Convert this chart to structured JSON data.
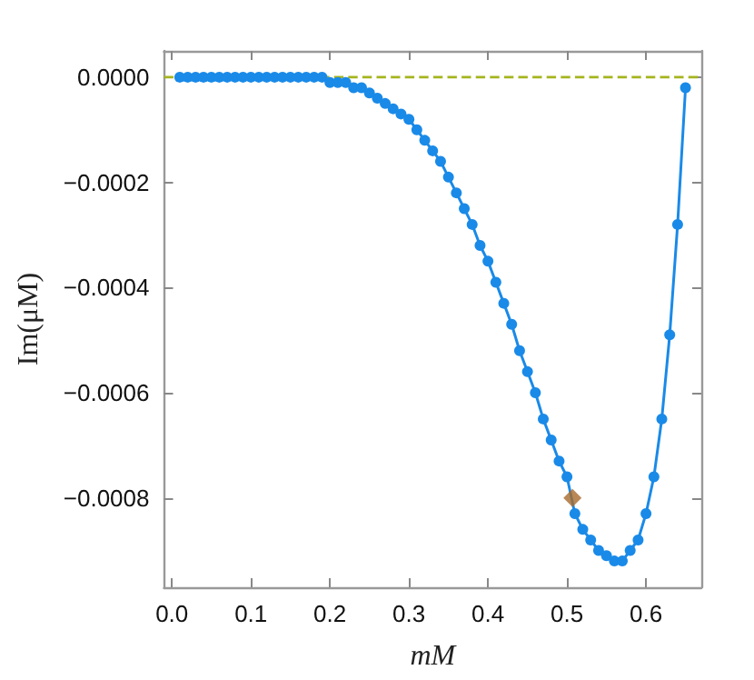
{
  "chart_data": {
    "type": "line",
    "xlabel": "mM",
    "ylabel": "Im(μM)",
    "xlim": [
      -0.01,
      0.67
    ],
    "ylim": [
      -0.00097,
      5e-05
    ],
    "xticks": [
      {
        "value": 0,
        "label": "0.0"
      },
      {
        "value": 0.1,
        "label": "0.1"
      },
      {
        "value": 0.2,
        "label": "0.2"
      },
      {
        "value": 0.3,
        "label": "0.3"
      },
      {
        "value": 0.4,
        "label": "0.4"
      },
      {
        "value": 0.5,
        "label": "0.5"
      },
      {
        "value": 0.6,
        "label": "0.6"
      }
    ],
    "yticks": [
      {
        "value": 0,
        "label": "0.0000"
      },
      {
        "value": -0.0002,
        "label": "−0.0002"
      },
      {
        "value": -0.0004,
        "label": "−0.0004"
      },
      {
        "value": -0.0006,
        "label": "−0.0006"
      },
      {
        "value": -0.0008,
        "label": "−0.0008"
      }
    ],
    "grid": false,
    "marker": "circle",
    "line_style": "solid",
    "series": [
      {
        "color": "#1a8ae8",
        "x": [
          0.01,
          0.02,
          0.03,
          0.04,
          0.05,
          0.06,
          0.07,
          0.08,
          0.09,
          0.1,
          0.11,
          0.12,
          0.13,
          0.14,
          0.15,
          0.16,
          0.17,
          0.18,
          0.19,
          0.2,
          0.21,
          0.22,
          0.23,
          0.24,
          0.25,
          0.26,
          0.27,
          0.28,
          0.29,
          0.3,
          0.31,
          0.32,
          0.33,
          0.34,
          0.35,
          0.36,
          0.37,
          0.38,
          0.39,
          0.4,
          0.41,
          0.42,
          0.43,
          0.44,
          0.45,
          0.46,
          0.47,
          0.48,
          0.49,
          0.5,
          0.51,
          0.52,
          0.53,
          0.54,
          0.55,
          0.56,
          0.57,
          0.58,
          0.59,
          0.6,
          0.61,
          0.62,
          0.63,
          0.64,
          0.65
        ],
        "values": [
          0,
          0,
          0,
          0,
          0,
          0,
          0,
          0,
          0,
          0,
          0,
          0,
          0,
          0,
          0,
          0,
          0,
          0,
          0,
          -1e-05,
          -1e-05,
          -1e-05,
          -2e-05,
          -2e-05,
          -3e-05,
          -4e-05,
          -5e-05,
          -6e-05,
          -7e-05,
          -8e-05,
          -0.0001,
          -0.00012,
          -0.00014,
          -0.00016,
          -0.00019,
          -0.00022,
          -0.00025,
          -0.00028,
          -0.00032,
          -0.00035,
          -0.00039,
          -0.00043,
          -0.00047,
          -0.00052,
          -0.00056,
          -0.0006,
          -0.00065,
          -0.00069,
          -0.00073,
          -0.00076,
          -0.00083,
          -0.00086,
          -0.00088,
          -0.0009,
          -0.00091,
          -0.00092,
          -0.00092,
          -0.0009,
          -0.00088,
          -0.00083,
          -0.00076,
          -0.00065,
          -0.00049,
          -0.00028,
          -2e-05
        ]
      },
      {
        "type": "scatter",
        "color": "#a86a2c",
        "marker": "diamond",
        "x": [
          0.507
        ],
        "values": [
          -0.0008
        ]
      }
    ],
    "ref_lines": [
      {
        "axis": "y",
        "value": 0,
        "color": "#a6b41e",
        "line_style": "dashed"
      }
    ]
  }
}
